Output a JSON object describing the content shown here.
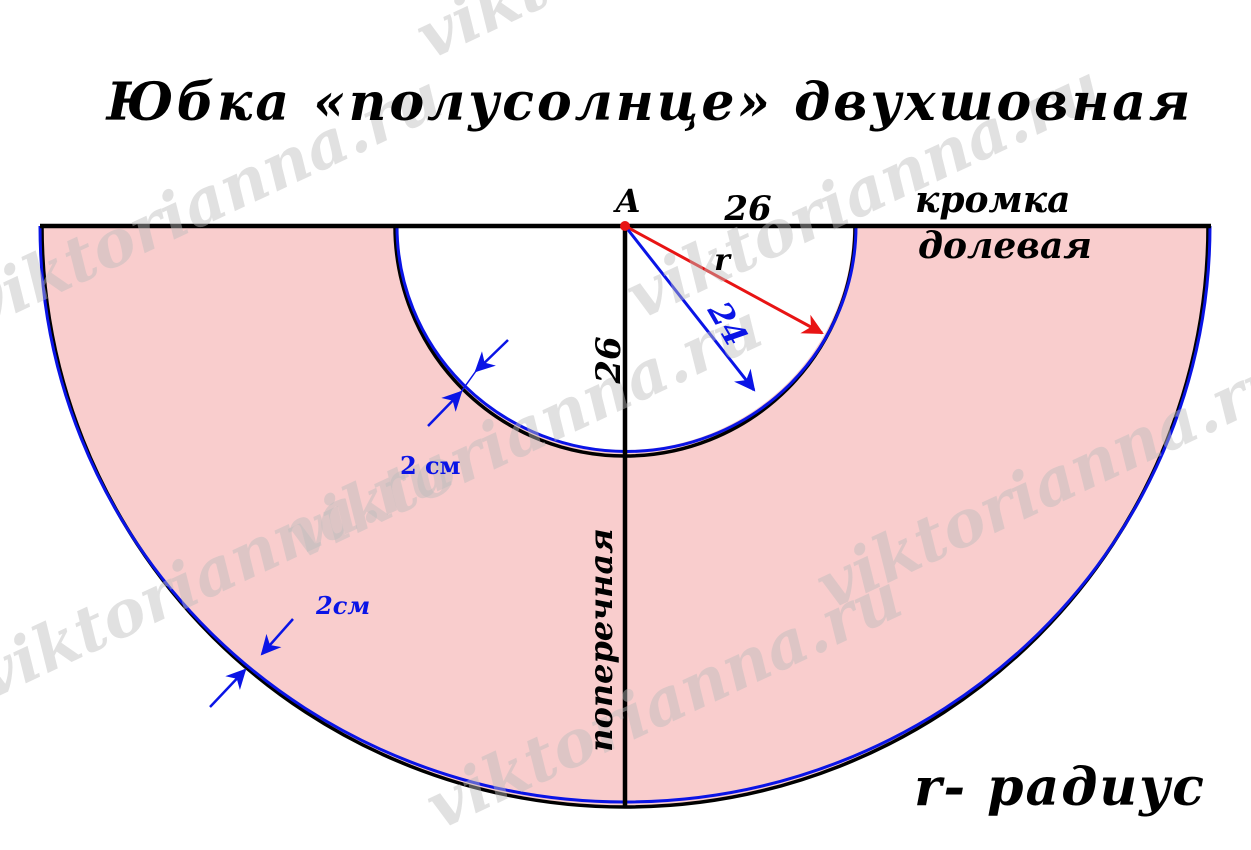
{
  "title": "Юбка «полусолнце» двухшовная",
  "point_label": "A",
  "top_dimension": "26",
  "vertical_dimension": "26",
  "radius_label": "r",
  "inner_radius_value": "24",
  "selvage_label_line1": "кромка",
  "selvage_label_line2": "долевая",
  "cross_grain_label": "поперечная",
  "waist_allowance_label": "2 см",
  "hem_allowance_label": "2см",
  "legend": "r- радиус",
  "watermark": "viktorianna.ru",
  "colors": {
    "fill": "#f9cdcd",
    "outline": "#000000",
    "allowance": "#0a14e6",
    "radius_arrow": "#e81414",
    "point": "#e81414"
  }
}
